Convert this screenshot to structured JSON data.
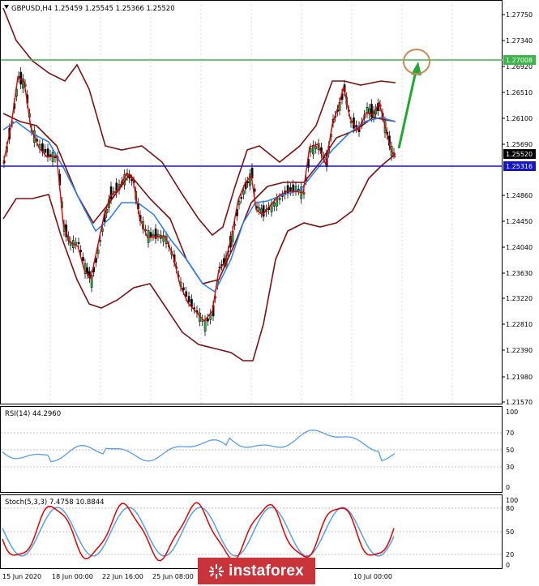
{
  "main": {
    "header": "GBPUSD,H4  1.25459 1.25545 1.25366 1.25520",
    "price_labels": [
      "1.27750",
      "1.27340",
      "1.26920",
      "1.26510",
      "1.26100",
      "1.25690",
      "1.24860",
      "1.24450",
      "1.24040",
      "1.23630",
      "1.23220",
      "1.22810",
      "1.22390",
      "1.21980",
      "1.21570"
    ],
    "highlight_tags": [
      {
        "text": "1.27008",
        "color": "#3cb44a"
      },
      {
        "text": "1.25520",
        "color": "#000000"
      },
      {
        "text": "1.25316",
        "color": "#1414c8"
      }
    ],
    "colors": {
      "bollinger": "#7a1010",
      "ma_fast": "#e00000",
      "ma_slow": "#2f7fe8",
      "resistance": "#3cb44a",
      "support": "#1414c8",
      "arrow": "#22a832",
      "circle": "#c98a5a"
    }
  },
  "rsi": {
    "header": "RSI(14) 44.2960",
    "levels": [
      "100",
      "70",
      "50",
      "30",
      "0"
    ],
    "color": "#5a9ee8"
  },
  "stoch": {
    "header": "Stoch(5,3,3) 7.4758 10.8844",
    "levels": [
      "100",
      "80",
      "50",
      "20",
      "0"
    ],
    "main_color": "#e00000",
    "signal_color": "#5a9ee8"
  },
  "time_axis": [
    "15 Jun 2020",
    "18 Jun 00:00",
    "22 Jun 16:00",
    "25 Jun 08:00",
    "10 Jul 00:00"
  ],
  "watermark": "instaforex"
}
